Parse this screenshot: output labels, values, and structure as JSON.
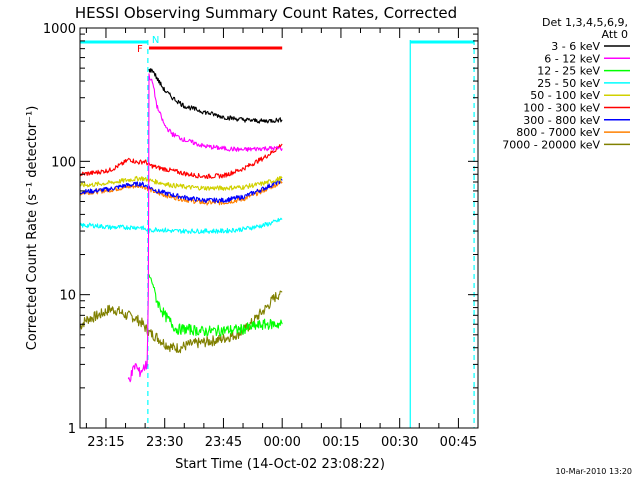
{
  "chart_data": {
    "type": "line",
    "title": "HESSI Observing Summary Count Rates, Corrected",
    "xlabel": "Start Time (14-Oct-02 23:08:22)",
    "ylabel": "Corrected Count Rate (s⁻¹ detector⁻¹)",
    "y_scale": "log",
    "ylim": [
      1,
      1000
    ],
    "xlim_minutes_after_2300": [
      8.37,
      110.0
    ],
    "x_ticks": [
      {
        "label": "23:15",
        "t": 15
      },
      {
        "label": "23:30",
        "t": 30
      },
      {
        "label": "23:45",
        "t": 45
      },
      {
        "label": "00:00",
        "t": 60
      },
      {
        "label": "00:15",
        "t": 75
      },
      {
        "label": "00:30",
        "t": 90
      },
      {
        "label": "00:45",
        "t": 105
      }
    ],
    "y_ticks": [
      {
        "label": "1",
        "v": 1
      },
      {
        "label": "10",
        "v": 10
      },
      {
        "label": "100",
        "v": 100
      },
      {
        "label": "1000",
        "v": 1000
      }
    ],
    "legend": {
      "header_line1": "Det 1,3,4,5,6,9,",
      "header_line2": "Att 0",
      "placement": "top-right, outside plot"
    },
    "series": [
      {
        "name": "3 - 6 keV",
        "color": "#000000",
        "points": [
          [
            25.7,
            null
          ],
          [
            26,
            480
          ],
          [
            27,
            480
          ],
          [
            28,
            420
          ],
          [
            30,
            340
          ],
          [
            32,
            300
          ],
          [
            35,
            260
          ],
          [
            40,
            235
          ],
          [
            45,
            215
          ],
          [
            50,
            205
          ],
          [
            55,
            200
          ],
          [
            60,
            205
          ]
        ]
      },
      {
        "name": "6 - 12 keV",
        "color": "#ff00ff",
        "points": [
          [
            20.7,
            2.3
          ],
          [
            21.5,
            2.5
          ],
          [
            22.5,
            3.0
          ],
          [
            23.5,
            2.6
          ],
          [
            24.5,
            2.8
          ],
          [
            25.5,
            3.0
          ],
          [
            25.8,
            10
          ],
          [
            26,
            440
          ],
          [
            27,
            380
          ],
          [
            28,
            260
          ],
          [
            30,
            185
          ],
          [
            32,
            160
          ],
          [
            35,
            145
          ],
          [
            40,
            130
          ],
          [
            45,
            125
          ],
          [
            50,
            122
          ],
          [
            55,
            125
          ],
          [
            60,
            125
          ]
        ]
      },
      {
        "name": "12 - 25 keV",
        "color": "#00ff00",
        "points": [
          [
            26,
            14
          ],
          [
            27,
            12
          ],
          [
            28,
            9
          ],
          [
            30,
            7
          ],
          [
            33,
            5.5
          ],
          [
            36,
            5.5
          ],
          [
            40,
            5.3
          ],
          [
            45,
            5.4
          ],
          [
            50,
            5.5
          ],
          [
            53,
            5.8
          ],
          [
            56,
            6.0
          ],
          [
            58,
            6.0
          ],
          [
            60,
            6.0
          ]
        ]
      },
      {
        "name": "25 - 50 keV",
        "color": "#00ffff",
        "points": [
          [
            8.4,
            33
          ],
          [
            12,
            33
          ],
          [
            16,
            32
          ],
          [
            20,
            32
          ],
          [
            24,
            32
          ],
          [
            26,
            30
          ],
          [
            28,
            31
          ],
          [
            32,
            30
          ],
          [
            36,
            30
          ],
          [
            40,
            30
          ],
          [
            45,
            30
          ],
          [
            50,
            31
          ],
          [
            55,
            33
          ],
          [
            58,
            35
          ],
          [
            60,
            37
          ]
        ]
      },
      {
        "name": "50 - 100 keV",
        "color": "#d0d000",
        "points": [
          [
            8.4,
            66
          ],
          [
            12,
            67
          ],
          [
            16,
            69
          ],
          [
            20,
            72
          ],
          [
            24,
            75
          ],
          [
            26,
            72
          ],
          [
            28,
            70
          ],
          [
            32,
            66
          ],
          [
            36,
            64
          ],
          [
            40,
            63
          ],
          [
            45,
            63
          ],
          [
            50,
            64
          ],
          [
            55,
            68
          ],
          [
            58,
            72
          ],
          [
            60,
            75
          ]
        ]
      },
      {
        "name": "100 - 300 keV",
        "color": "#ff0000",
        "points": [
          [
            8.4,
            80
          ],
          [
            12,
            82
          ],
          [
            16,
            86
          ],
          [
            19,
            95
          ],
          [
            21,
            104
          ],
          [
            23,
            98
          ],
          [
            25,
            100
          ],
          [
            26,
            94
          ],
          [
            28,
            90
          ],
          [
            32,
            85
          ],
          [
            36,
            80
          ],
          [
            40,
            77
          ],
          [
            45,
            78
          ],
          [
            50,
            88
          ],
          [
            55,
            105
          ],
          [
            58,
            120
          ],
          [
            60,
            135
          ]
        ]
      },
      {
        "name": "300 - 800 keV",
        "color": "#0000ff",
        "points": [
          [
            8.4,
            59
          ],
          [
            12,
            60
          ],
          [
            16,
            62
          ],
          [
            20,
            66
          ],
          [
            24,
            68
          ],
          [
            26,
            64
          ],
          [
            28,
            60
          ],
          [
            32,
            56
          ],
          [
            36,
            53
          ],
          [
            40,
            51
          ],
          [
            45,
            51
          ],
          [
            50,
            54
          ],
          [
            55,
            62
          ],
          [
            58,
            68
          ],
          [
            60,
            72
          ]
        ]
      },
      {
        "name": "800 - 7000 keV",
        "color": "#ff8000",
        "points": [
          [
            8.4,
            58
          ],
          [
            12,
            59
          ],
          [
            16,
            61
          ],
          [
            20,
            64
          ],
          [
            24,
            66
          ],
          [
            26,
            62
          ],
          [
            28,
            58
          ],
          [
            32,
            54
          ],
          [
            36,
            51
          ],
          [
            40,
            49
          ],
          [
            45,
            49
          ],
          [
            50,
            52
          ],
          [
            55,
            60
          ],
          [
            58,
            66
          ],
          [
            60,
            70
          ]
        ]
      },
      {
        "name": "7000 - 20000 keV",
        "color": "#808000",
        "points": [
          [
            8.4,
            5.8
          ],
          [
            10,
            6.5
          ],
          [
            12,
            6.8
          ],
          [
            14,
            7.2
          ],
          [
            16,
            7.8
          ],
          [
            18,
            7.6
          ],
          [
            20,
            7.0
          ],
          [
            22,
            6.8
          ],
          [
            24,
            6.2
          ],
          [
            26,
            5.2
          ],
          [
            28,
            4.8
          ],
          [
            30,
            4.3
          ],
          [
            32,
            4.0
          ],
          [
            34,
            4.0
          ],
          [
            36,
            4.2
          ],
          [
            40,
            4.4
          ],
          [
            44,
            4.6
          ],
          [
            48,
            5.0
          ],
          [
            50,
            5.3
          ],
          [
            52,
            6.0
          ],
          [
            54,
            7.0
          ],
          [
            56,
            8.0
          ],
          [
            58,
            9.5
          ],
          [
            60,
            10.5
          ]
        ]
      }
    ],
    "flag_bars": [
      {
        "label": "N",
        "color": "#00ffff",
        "from_t": 8.4,
        "to_t": 25.7
      },
      {
        "label": "",
        "color": "#00ffff",
        "from_t": 92.7,
        "to_t": 109.0
      },
      {
        "label": "F",
        "color": "#ff0000",
        "from_t": 26.0,
        "to_t": 60.0
      }
    ],
    "vertical_markers": [
      {
        "t": 25.7,
        "color": "#00ffff",
        "style": "dashed"
      },
      {
        "t": 92.7,
        "color": "#00ffff",
        "style": "solid"
      },
      {
        "t": 109.0,
        "color": "#00ffff",
        "style": "dashed"
      }
    ]
  },
  "timestamp": "10-Mar-2010 13:20"
}
